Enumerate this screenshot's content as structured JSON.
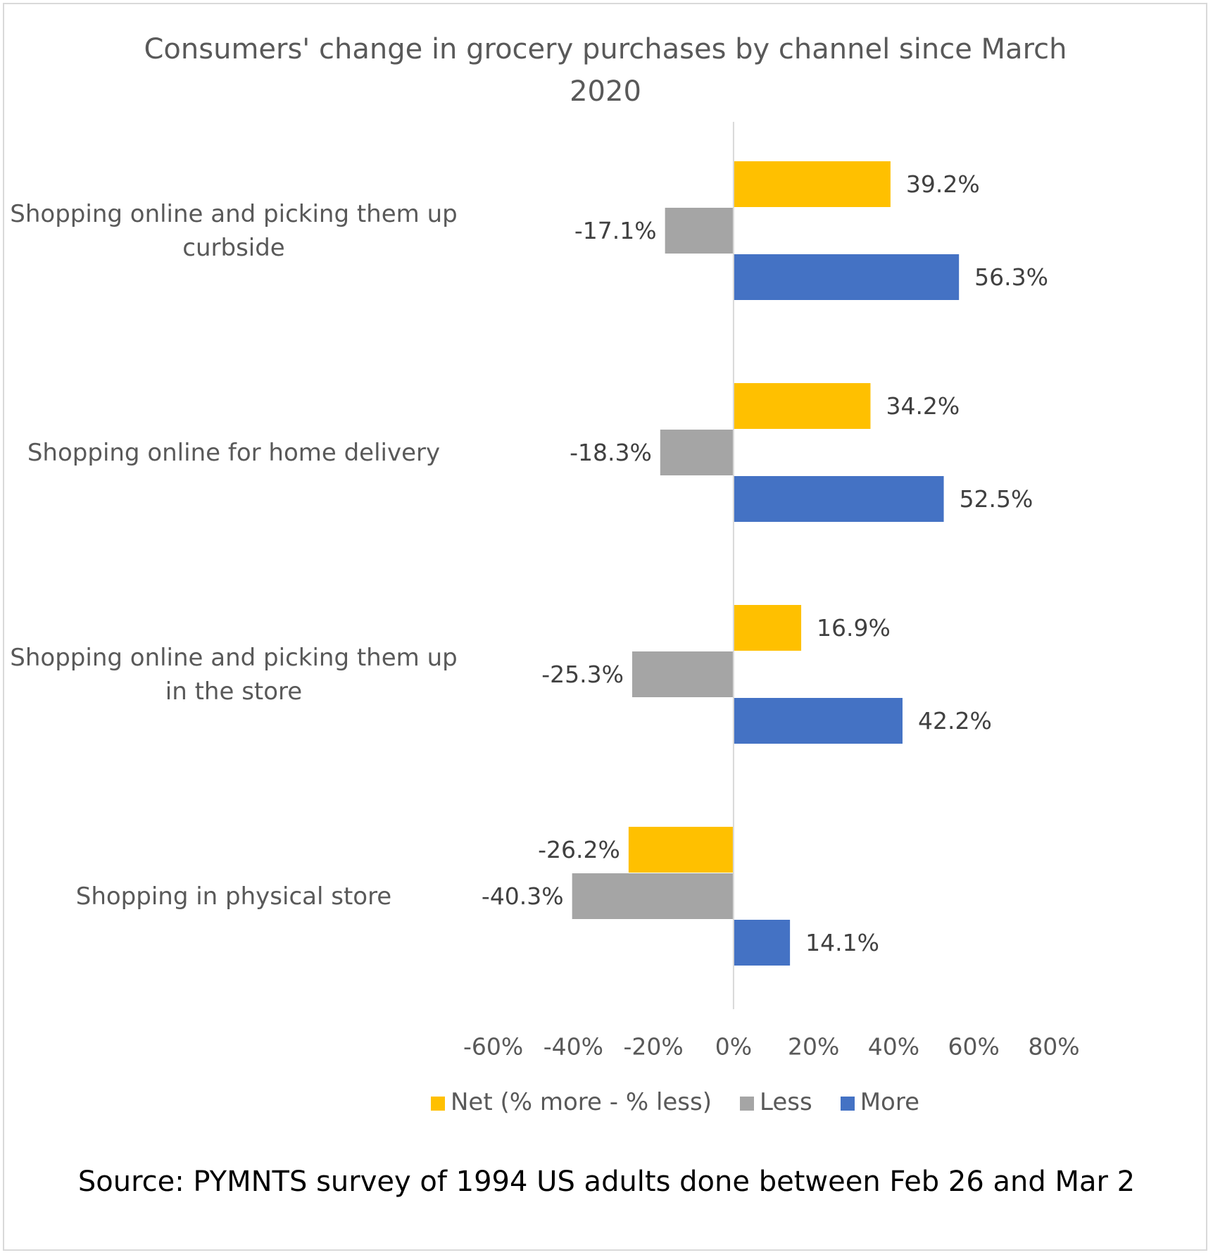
{
  "chart_data": {
    "type": "bar",
    "orientation": "horizontal",
    "title": "Consumers' change in grocery purchases by channel since March 2020",
    "categories": [
      "Shopping online and picking them up curbside",
      "Shopping online for home delivery",
      "Shopping online and picking them up in the store",
      "Shopping in physical store"
    ],
    "series": [
      {
        "name": "Net (% more - % less)",
        "color": "#FFC000",
        "values": [
          39.2,
          34.2,
          16.9,
          -26.2
        ],
        "value_labels": [
          "39.2%",
          "34.2%",
          "16.9%",
          "-26.2%"
        ]
      },
      {
        "name": "Less",
        "color": "#A5A5A5",
        "values": [
          -17.1,
          -18.3,
          -25.3,
          -40.3
        ],
        "value_labels": [
          "-17.1%",
          "-18.3%",
          "-25.3%",
          "-40.3%"
        ]
      },
      {
        "name": "More",
        "color": "#4472C4",
        "values": [
          56.3,
          52.5,
          42.2,
          14.1
        ],
        "value_labels": [
          "56.3%",
          "52.5%",
          "42.2%",
          "14.1%"
        ]
      }
    ],
    "xlim": [
      -60,
      80
    ],
    "xticks": [
      {
        "value": -60,
        "label": "-60%"
      },
      {
        "value": -40,
        "label": "-40%"
      },
      {
        "value": -20,
        "label": "-20%"
      },
      {
        "value": 0,
        "label": "0%"
      },
      {
        "value": 20,
        "label": "20%"
      },
      {
        "value": 40,
        "label": "40%"
      },
      {
        "value": 60,
        "label": "60%"
      },
      {
        "value": 80,
        "label": "80%"
      }
    ],
    "grid": false,
    "legend": "bottom",
    "note": "Source: PYMNTS survey of 1994 US adults done between Feb 26 and Mar 2"
  }
}
